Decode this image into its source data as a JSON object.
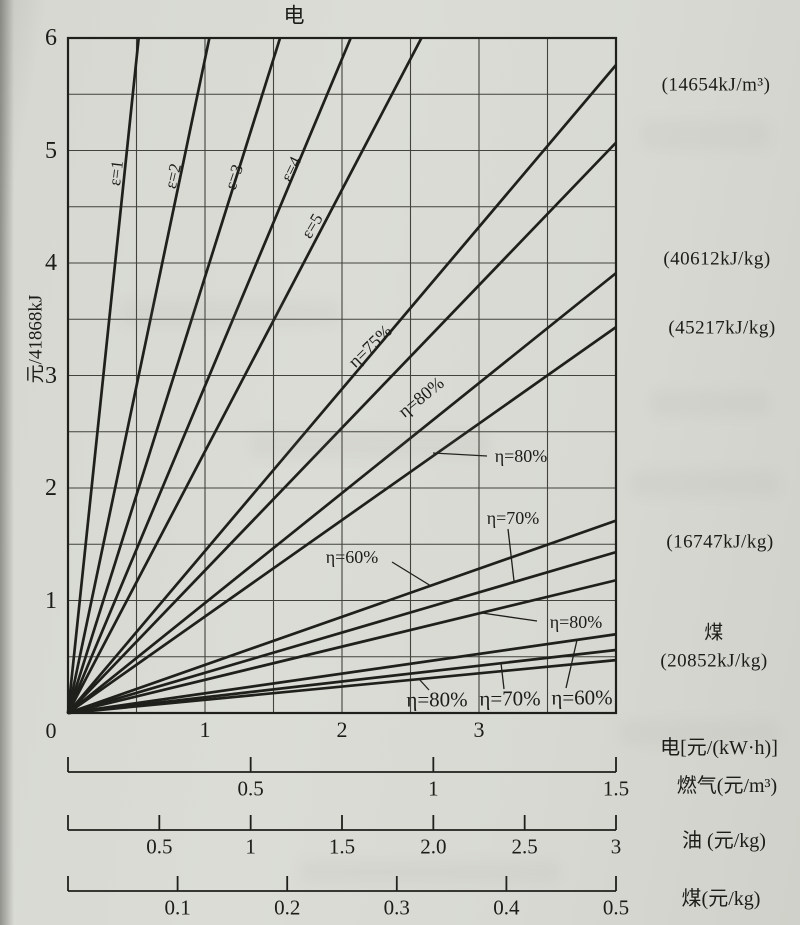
{
  "chart_data": {
    "type": "line",
    "title_top": "电",
    "grid": true,
    "colors": {
      "paper": "#d8d9d3",
      "line": "#1f1f1c",
      "grid": "#43433d",
      "text": "#1c1c19"
    },
    "y_axis": {
      "label": "元/41868kJ",
      "range": [
        0,
        6
      ],
      "ticks": [
        6,
        5,
        4,
        3,
        2,
        1
      ],
      "origin_label": "0",
      "grid_step": 0.5
    },
    "x_axis_electricity": {
      "title": "电[元/(kW·h)]",
      "range": [
        0,
        4
      ],
      "tick_values": [
        1,
        2,
        3
      ],
      "ticks": [
        "1",
        "2",
        "3"
      ],
      "grid_step": 0.5
    },
    "sub_axes": [
      {
        "name": "gas",
        "title": "燃气(元/m³)",
        "max": 1.5,
        "values": [
          0,
          0.5,
          1,
          1.5
        ],
        "labels": [
          "",
          "0.5",
          "1",
          "1.5"
        ]
      },
      {
        "name": "oil",
        "title": "油 (元/kg)",
        "max": 3,
        "values": [
          0,
          0.5,
          1,
          1.5,
          2.0,
          2.5,
          3
        ],
        "labels": [
          "",
          "0.5",
          "1",
          "1.5",
          "2.0",
          "2.5",
          "3"
        ]
      },
      {
        "name": "coal",
        "title": "煤(元/kg)",
        "max": 0.5,
        "values": [
          0,
          0.1,
          0.2,
          0.3,
          0.4,
          0.5
        ],
        "labels": [
          "",
          "0.1",
          "0.2",
          "0.3",
          "0.4",
          "0.5"
        ]
      }
    ],
    "fuel_annotations": [
      {
        "id": "gas-heating-value",
        "text": "(14654kJ/m³)"
      },
      {
        "id": "oil40612-heating-value",
        "text": "(40612kJ/kg)"
      },
      {
        "id": "oil45217-heating-value",
        "text": "(45217kJ/kg)"
      },
      {
        "id": "coal16747-heating-value",
        "text": "(16747kJ/kg)"
      },
      {
        "id": "coal-name",
        "text": "煤"
      },
      {
        "id": "coal20852-heating-value",
        "text": "(20852kJ/kg)"
      }
    ],
    "lines": [
      {
        "id": "e1",
        "family": "electricity",
        "label": "ε=1",
        "exit": [
          0.516,
          6
        ]
      },
      {
        "id": "e2",
        "family": "electricity",
        "label": "ε=2",
        "exit": [
          1.032,
          6
        ]
      },
      {
        "id": "e3",
        "family": "electricity",
        "label": "ε=3",
        "exit": [
          1.548,
          6
        ]
      },
      {
        "id": "e4",
        "family": "electricity",
        "label": "ε=4",
        "exit": [
          2.064,
          6
        ]
      },
      {
        "id": "e5",
        "family": "electricity",
        "label": "ε=5",
        "exit": [
          2.58,
          6
        ]
      },
      {
        "id": "gas75",
        "family": "gas-14654",
        "label": "η=75%",
        "exit": [
          4,
          5.76
        ]
      },
      {
        "id": "gas80",
        "family": "gas-14654",
        "label": "",
        "exit": [
          4,
          5.07
        ]
      },
      {
        "id": "oil40612_80",
        "family": "oil-40612",
        "label": "η=80%",
        "exit": [
          4,
          3.91
        ]
      },
      {
        "id": "oil45217_80",
        "family": "oil-45217",
        "label": "η=80%",
        "exit": [
          4,
          3.43
        ]
      },
      {
        "id": "c16747_60",
        "family": "coal-16747",
        "label": "η=60%",
        "exit": [
          4,
          1.71
        ]
      },
      {
        "id": "c16747_70",
        "family": "coal-16747",
        "label": "η=70%",
        "exit": [
          4,
          1.43
        ]
      },
      {
        "id": "c16747_80",
        "family": "coal-16747",
        "label": "η=80%",
        "exit": [
          4,
          1.18
        ]
      },
      {
        "id": "c20852_60",
        "family": "coal-20852",
        "label": "η=60%",
        "exit": [
          4,
          0.7
        ]
      },
      {
        "id": "c20852_70",
        "family": "coal-20852",
        "label": "η=70%",
        "exit": [
          4,
          0.56
        ]
      },
      {
        "id": "c20852_80",
        "family": "coal-20852",
        "label": "η=80%",
        "exit": [
          4,
          0.47
        ]
      }
    ]
  }
}
